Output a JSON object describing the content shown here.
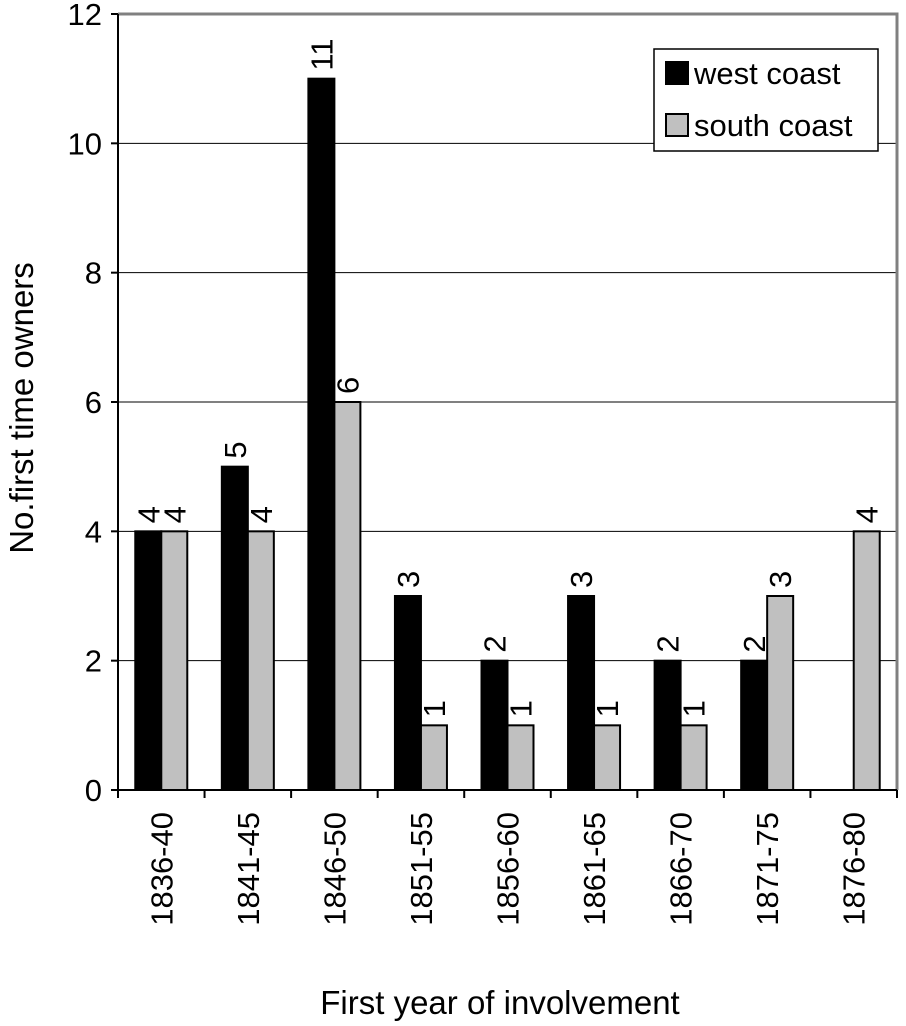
{
  "chart_data": {
    "type": "bar",
    "title": "",
    "xlabel": "First year of involvement",
    "ylabel": "No.first time owners",
    "ylim": [
      0,
      12
    ],
    "yticks": [
      0,
      2,
      4,
      6,
      8,
      10,
      12
    ],
    "grid": true,
    "legend_position": "top-right",
    "categories": [
      "1836-40",
      "1841-45",
      "1846-50",
      "1851-55",
      "1856-60",
      "1861-65",
      "1866-70",
      "1871-75",
      "1876-80"
    ],
    "series": [
      {
        "name": "west coast",
        "color": "#000000",
        "values": [
          4,
          5,
          11,
          3,
          2,
          3,
          2,
          2,
          0
        ],
        "labels": [
          "4",
          "5",
          "11",
          "3",
          "2",
          "3",
          "2",
          "2",
          ""
        ]
      },
      {
        "name": "south coast",
        "color": "#c0c0c0",
        "values": [
          4,
          4,
          6,
          1,
          1,
          1,
          1,
          3,
          4
        ],
        "labels": [
          "4",
          "4",
          "6",
          "1",
          "1",
          "1",
          "1",
          "3",
          "4"
        ]
      }
    ]
  }
}
